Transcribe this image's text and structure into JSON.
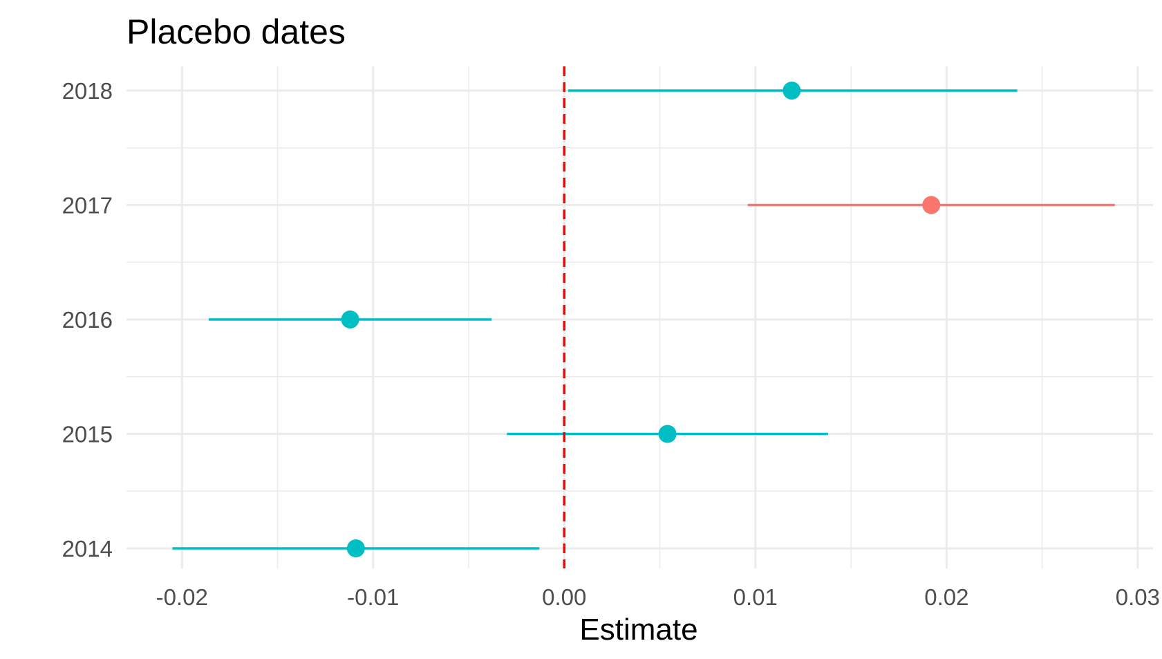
{
  "chart_data": {
    "type": "forest",
    "title": "Placebo dates",
    "xlabel": "Estimate",
    "ylabel": "",
    "xlim": [
      -0.0229,
      0.0308
    ],
    "x_ticks": [
      -0.02,
      -0.01,
      0.0,
      0.01,
      0.02,
      0.03
    ],
    "x_tick_labels": [
      "-0.02",
      "-0.01",
      "0.00",
      "0.01",
      "0.02",
      "0.03"
    ],
    "categories": [
      "2014",
      "2015",
      "2016",
      "2017",
      "2018"
    ],
    "points": [
      {
        "year": "2014",
        "estimate": -0.0109,
        "ci_low": -0.0205,
        "ci_high": -0.0013,
        "color": "#00BFC4"
      },
      {
        "year": "2015",
        "estimate": 0.0054,
        "ci_low": -0.003,
        "ci_high": 0.0138,
        "color": "#00BFC4"
      },
      {
        "year": "2016",
        "estimate": -0.0112,
        "ci_low": -0.0186,
        "ci_high": -0.0038,
        "color": "#00BFC4"
      },
      {
        "year": "2017",
        "estimate": 0.0192,
        "ci_low": 0.0096,
        "ci_high": 0.0288,
        "color": "#F8766D"
      },
      {
        "year": "2018",
        "estimate": 0.0119,
        "ci_low": 0.0002,
        "ci_high": 0.0237,
        "color": "#00BFC4"
      }
    ],
    "reference_line": {
      "x": 0.0,
      "style": "dashed",
      "color": "#FF0000"
    },
    "grid": true,
    "legend": "none"
  }
}
